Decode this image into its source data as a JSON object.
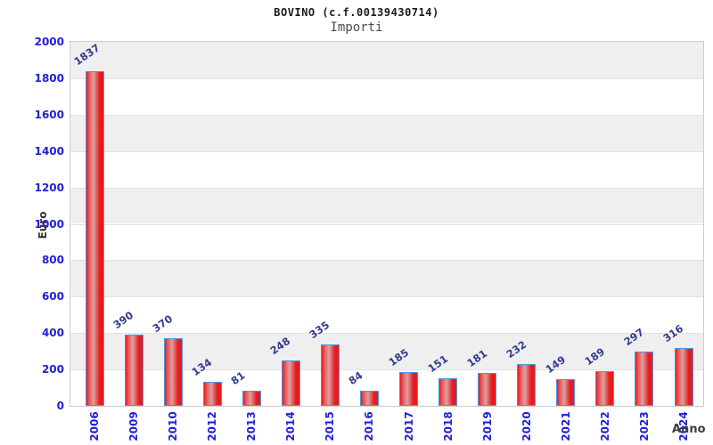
{
  "header": {
    "title": "BOVINO (c.f.00139430714)",
    "subtitle": "Importi"
  },
  "chart_data": {
    "type": "bar",
    "title": "BOVINO (c.f.00139430714)",
    "subtitle": "Importi",
    "xlabel": "Anno",
    "ylabel": "Euro",
    "categories": [
      "2006",
      "2009",
      "2010",
      "2012",
      "2013",
      "2014",
      "2015",
      "2016",
      "2017",
      "2018",
      "2019",
      "2020",
      "2021",
      "2022",
      "2023",
      "2024"
    ],
    "values": [
      1837,
      390,
      370,
      134,
      81,
      248,
      335,
      84,
      185,
      151,
      181,
      232,
      149,
      189,
      297,
      316
    ],
    "ylim": [
      0,
      2000
    ],
    "ytick_step": 200,
    "grid": "alternating-horizontal-bands",
    "legend": null
  },
  "colors": {
    "tick_label_blue": "#2121d6",
    "value_label_navy": "#333d8f",
    "bar_border_blue": "#4798e8",
    "bar_red_edge": "#e51c1f",
    "bar_red_mid": "#ef5151",
    "bar_highlight": "#d9a1a1",
    "band_gray": "#efefef",
    "band_white": "#ffffff",
    "gridline": "#e2e2e2",
    "plot_border": "#cccccc"
  }
}
